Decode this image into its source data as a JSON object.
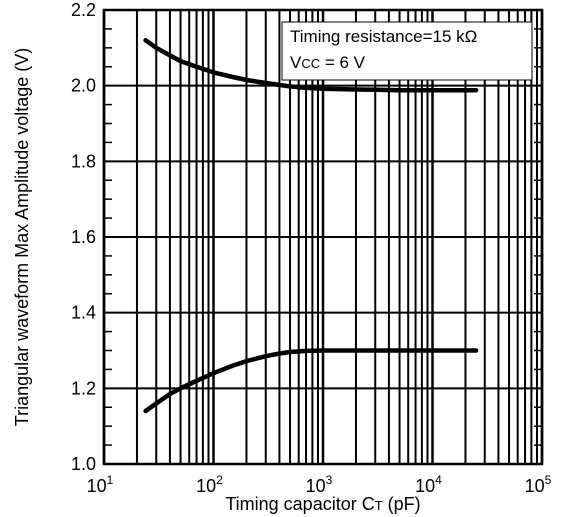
{
  "chart_data": {
    "type": "line",
    "title": "",
    "xlabel_main": "Timing capacitor C",
    "xlabel_sub": "T",
    "xlabel_unit": " (pF)",
    "ylabel": "Triangular waveform Max Amplitude voltage (V)",
    "xscale": "log",
    "xlim": [
      10,
      100000
    ],
    "ylim": [
      1.0,
      2.2
    ],
    "grid": true,
    "x_ticks": [
      {
        "base": "10",
        "exp": "1",
        "value": 10
      },
      {
        "base": "10",
        "exp": "2",
        "value": 100
      },
      {
        "base": "10",
        "exp": "3",
        "value": 1000
      },
      {
        "base": "10",
        "exp": "4",
        "value": 10000
      },
      {
        "base": "10",
        "exp": "5",
        "value": 100000
      }
    ],
    "y_ticks": [
      {
        "label": "1.0",
        "value": 1.0
      },
      {
        "label": "1.2",
        "value": 1.2
      },
      {
        "label": "1.4",
        "value": 1.4
      },
      {
        "label": "1.6",
        "value": 1.6
      },
      {
        "label": "1.8",
        "value": 1.8
      },
      {
        "label": "2.0",
        "value": 2.0
      },
      {
        "label": "2.2",
        "value": 2.2
      }
    ],
    "annotation": {
      "line1": "Timing resistance=15 kΩ",
      "line2_main": "V",
      "line2_sub": "CC",
      "line2_rest": " = 6 V"
    },
    "series": [
      {
        "x": [
          24,
          30,
          40,
          50,
          70,
          100,
          150,
          200,
          300,
          500,
          700,
          1000,
          2000,
          3000,
          5000,
          10000,
          25000
        ],
        "y": [
          2.12,
          2.1,
          2.08,
          2.065,
          2.05,
          2.035,
          2.023,
          2.015,
          2.007,
          1.998,
          1.994,
          1.992,
          1.99,
          1.989,
          1.988,
          1.988,
          1.988
        ]
      },
      {
        "x": [
          24,
          30,
          40,
          50,
          70,
          100,
          150,
          200,
          300,
          400,
          500,
          700,
          1000,
          3000,
          10000,
          25000
        ],
        "y": [
          1.14,
          1.16,
          1.185,
          1.2,
          1.22,
          1.24,
          1.26,
          1.272,
          1.285,
          1.292,
          1.296,
          1.299,
          1.3,
          1.3,
          1.3,
          1.3
        ]
      }
    ]
  }
}
